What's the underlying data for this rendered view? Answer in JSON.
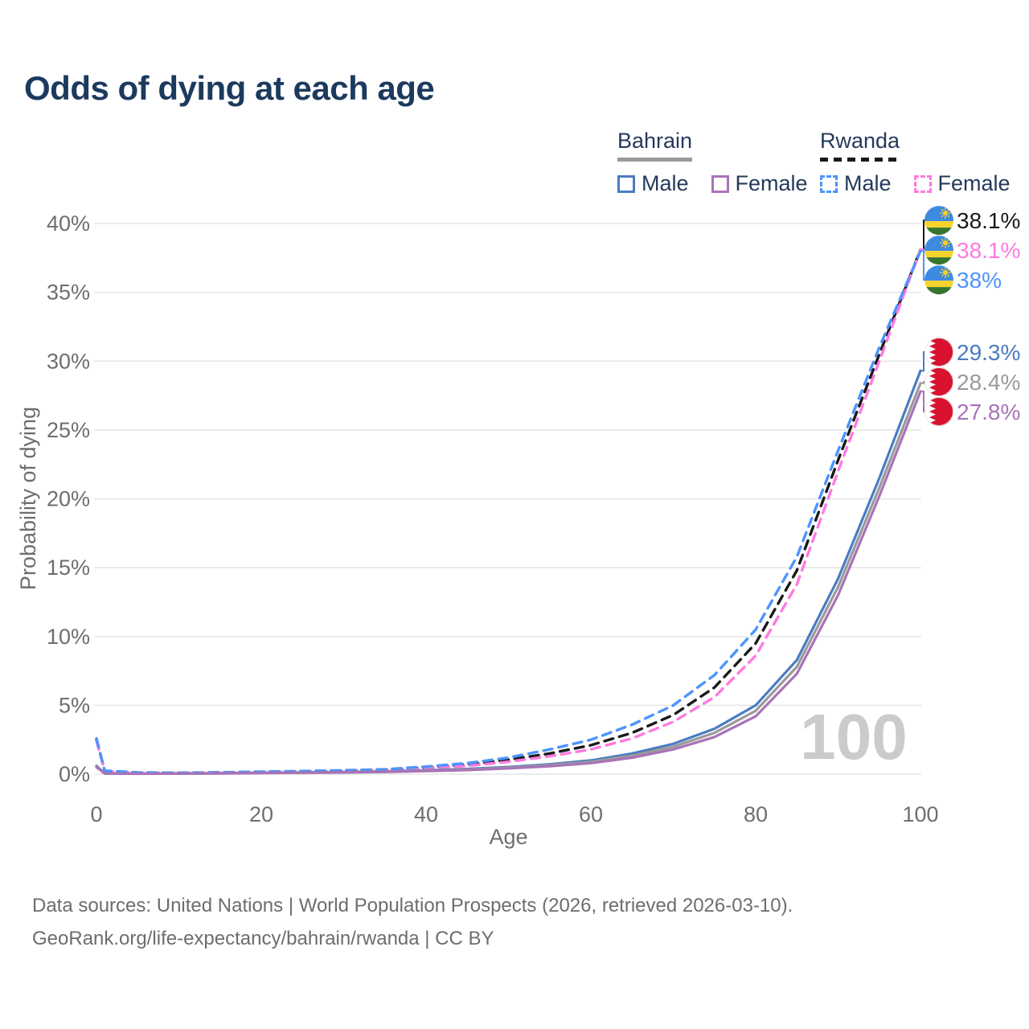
{
  "title": "Odds of dying at each age",
  "legend": {
    "groups": [
      {
        "label": "Bahrain",
        "line_style": "solid",
        "underline_color": "#999999",
        "items": [
          {
            "label": "Male",
            "color": "#4b7cc1",
            "dashed": false
          },
          {
            "label": "Female",
            "color": "#a973b8",
            "dashed": false
          }
        ]
      },
      {
        "label": "Rwanda",
        "line_style": "dashed",
        "underline_color": "#1a1a1a",
        "items": [
          {
            "label": "Male",
            "color": "#4d94ff",
            "dashed": true
          },
          {
            "label": "Female",
            "color": "#ff7ae0",
            "dashed": true
          }
        ]
      }
    ]
  },
  "chart_data": {
    "type": "line",
    "title": "Odds of dying at each age",
    "xlabel": "Age",
    "ylabel": "Probability of dying",
    "xlim": [
      0,
      100
    ],
    "ylim": [
      0,
      40
    ],
    "grid": true,
    "watermark": "100",
    "x_ticks": [
      {
        "value": 0,
        "label": "0"
      },
      {
        "value": 20,
        "label": "20"
      },
      {
        "value": 40,
        "label": "40"
      },
      {
        "value": 60,
        "label": "60"
      },
      {
        "value": 80,
        "label": "80"
      },
      {
        "value": 100,
        "label": "100"
      }
    ],
    "y_ticks": [
      {
        "value": 0,
        "label": "0%"
      },
      {
        "value": 5,
        "label": "5%"
      },
      {
        "value": 10,
        "label": "10%"
      },
      {
        "value": 15,
        "label": "15%"
      },
      {
        "value": 20,
        "label": "20%"
      },
      {
        "value": 25,
        "label": "25%"
      },
      {
        "value": 30,
        "label": "30%"
      },
      {
        "value": 35,
        "label": "35%"
      },
      {
        "value": 40,
        "label": "40%"
      }
    ],
    "x": [
      0,
      1,
      5,
      10,
      15,
      20,
      25,
      30,
      35,
      40,
      45,
      50,
      55,
      60,
      65,
      70,
      75,
      80,
      85,
      90,
      95,
      100
    ],
    "series": [
      {
        "name": "Rwanda both sexes",
        "country": "Rwanda",
        "sex": "both",
        "flag": "rwanda",
        "color": "#1a1a1a",
        "label_color": "#1a1a1a",
        "dashed": true,
        "end_label": "38.1%",
        "values": [
          2.5,
          0.23,
          0.11,
          0.09,
          0.12,
          0.16,
          0.2,
          0.25,
          0.32,
          0.48,
          0.7,
          1.05,
          1.5,
          2.1,
          3.0,
          4.3,
          6.3,
          9.5,
          14.8,
          22.8,
          30.5,
          38.1
        ]
      },
      {
        "name": "Rwanda female",
        "country": "Rwanda",
        "sex": "female",
        "flag": "rwanda",
        "color": "#ff7ae0",
        "label_color": "#ff7ae0",
        "dashed": true,
        "end_label": "38.1%",
        "values": [
          2.4,
          0.21,
          0.1,
          0.08,
          0.1,
          0.14,
          0.17,
          0.22,
          0.28,
          0.42,
          0.6,
          0.9,
          1.3,
          1.8,
          2.6,
          3.8,
          5.6,
          8.6,
          13.8,
          22.0,
          30.0,
          38.1
        ]
      },
      {
        "name": "Rwanda male",
        "country": "Rwanda",
        "sex": "male",
        "flag": "rwanda",
        "color": "#4d94ff",
        "label_color": "#4d94ff",
        "dashed": true,
        "end_label": "38%",
        "values": [
          2.6,
          0.25,
          0.12,
          0.1,
          0.13,
          0.18,
          0.22,
          0.28,
          0.35,
          0.55,
          0.8,
          1.2,
          1.8,
          2.5,
          3.6,
          5.0,
          7.2,
          10.5,
          15.8,
          23.5,
          31.0,
          38.0
        ]
      },
      {
        "name": "Bahrain male",
        "country": "Bahrain",
        "sex": "male",
        "flag": "bahrain",
        "color": "#4b7cc1",
        "label_color": "#4b7cc1",
        "dashed": false,
        "end_label": "29.3%",
        "values": [
          0.6,
          0.06,
          0.04,
          0.05,
          0.07,
          0.1,
          0.12,
          0.15,
          0.2,
          0.28,
          0.38,
          0.52,
          0.72,
          1.0,
          1.5,
          2.2,
          3.3,
          5.0,
          8.3,
          14.2,
          21.5,
          29.3
        ]
      },
      {
        "name": "Bahrain both sexes",
        "country": "Bahrain",
        "sex": "both",
        "flag": "bahrain",
        "color": "#9a9a9a",
        "label_color": "#9a9a9a",
        "dashed": false,
        "end_label": "28.4%",
        "values": [
          0.55,
          0.05,
          0.04,
          0.04,
          0.06,
          0.09,
          0.11,
          0.14,
          0.18,
          0.25,
          0.34,
          0.47,
          0.65,
          0.9,
          1.35,
          2.0,
          3.0,
          4.6,
          7.8,
          13.6,
          20.8,
          28.4
        ]
      },
      {
        "name": "Bahrain female",
        "country": "Bahrain",
        "sex": "female",
        "flag": "bahrain",
        "color": "#a973b8",
        "label_color": "#a973b8",
        "dashed": false,
        "end_label": "27.8%",
        "values": [
          0.5,
          0.05,
          0.03,
          0.04,
          0.05,
          0.08,
          0.1,
          0.12,
          0.16,
          0.22,
          0.3,
          0.42,
          0.58,
          0.8,
          1.2,
          1.8,
          2.7,
          4.2,
          7.3,
          13.0,
          20.2,
          27.8
        ]
      }
    ],
    "colors": {
      "grid": "#e5e5e5",
      "tick_text": "#6e6e6e",
      "watermark": "#cbcbcb"
    }
  },
  "footer": {
    "line1": "Data sources: United Nations | World Population Prospects (2026, retrieved 2026-03-10).",
    "line2": "GeoRank.org/life-expectancy/bahrain/rwanda | CC BY"
  }
}
